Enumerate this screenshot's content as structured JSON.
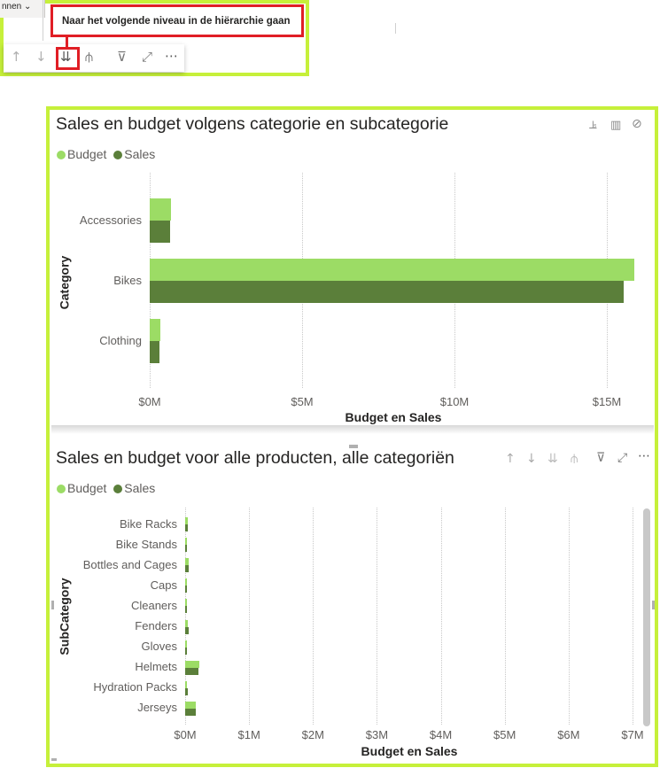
{
  "ribbon": {
    "tab_label": "nnen ⌄"
  },
  "tooltip": {
    "text": "Naar het volgende niveau in de hiërarchie gaan"
  },
  "toolbar": {
    "up": "↑",
    "down": "↓",
    "drill_next": "⇊",
    "expand": "⫛",
    "filter": "⊽",
    "focus": "⤢",
    "more": "⋯"
  },
  "colors": {
    "budget": "#9cdc65",
    "sales": "#5b7f3a",
    "highlight_frame": "#c6f03a",
    "tooltip_border": "#e01e25"
  },
  "chart1": {
    "title": "Sales en budget volgens categorie en subcategorie",
    "legend": {
      "budget": "Budget",
      "sales": "Sales"
    },
    "header_icons": [
      "drill-down-icon",
      "chart-icon",
      "no-drill-icon"
    ]
  },
  "chart2": {
    "title": "Sales en budget voor alle producten, alle categoriën",
    "legend": {
      "budget": "Budget",
      "sales": "Sales"
    }
  },
  "chart_data": [
    {
      "type": "bar",
      "orientation": "horizontal",
      "title": "Sales en budget volgens categorie en subcategorie",
      "xlabel": "Budget en Sales",
      "ylabel": "Category",
      "categories": [
        "Accessories",
        "Bikes",
        "Clothing"
      ],
      "series": [
        {
          "name": "Budget",
          "values": [
            0.7,
            15.9,
            0.35
          ]
        },
        {
          "name": "Sales",
          "values": [
            0.68,
            15.55,
            0.33
          ]
        }
      ],
      "xticks": [
        "$0M",
        "$5M",
        "$10M",
        "$15M"
      ],
      "xlim": [
        0,
        16.5
      ],
      "legend": "top-left",
      "grid": true
    },
    {
      "type": "bar",
      "orientation": "horizontal",
      "title": "Sales en budget voor alle producten, alle categoriën",
      "xlabel": "Budget en Sales",
      "ylabel": "SubCategory",
      "categories": [
        "Bike Racks",
        "Bike Stands",
        "Bottles and Cages",
        "Caps",
        "Cleaners",
        "Fenders",
        "Gloves",
        "Helmets",
        "Hydration Packs",
        "Jerseys"
      ],
      "series": [
        {
          "name": "Budget",
          "values": [
            0.04,
            0.03,
            0.05,
            0.02,
            0.01,
            0.04,
            0.03,
            0.22,
            0.03,
            0.17
          ]
        },
        {
          "name": "Sales",
          "values": [
            0.04,
            0.03,
            0.06,
            0.02,
            0.01,
            0.05,
            0.03,
            0.21,
            0.04,
            0.16
          ]
        }
      ],
      "xticks": [
        "$0M",
        "$1M",
        "$2M",
        "$3M",
        "$4M",
        "$5M",
        "$6M",
        "$7M"
      ],
      "xlim": [
        0,
        7.1
      ],
      "legend": "top-left",
      "grid": true
    }
  ]
}
